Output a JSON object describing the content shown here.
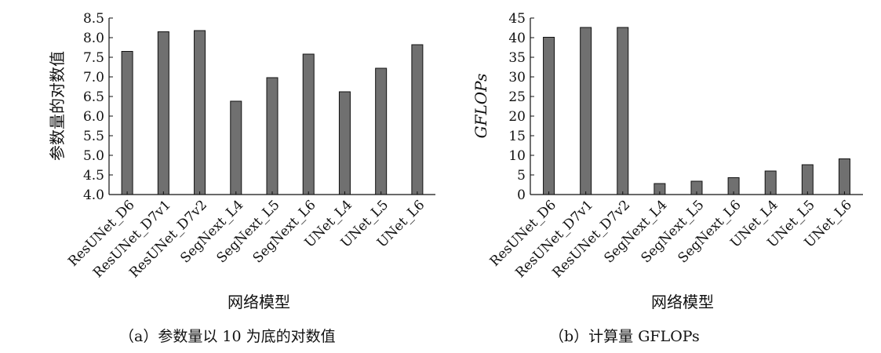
{
  "chart_data": [
    {
      "type": "bar",
      "xlabel": "网络模型",
      "ylabel": "参数量的对数值",
      "ylabel_italic": false,
      "categories": [
        "ResUNet_D6",
        "ResUNet_D7v1",
        "ResUNet_D7v2",
        "SegNext_L4",
        "SegNext_L5",
        "SegNext_L6",
        "UNet_L4",
        "UNet_L5",
        "UNet_L6"
      ],
      "values": [
        7.65,
        8.15,
        8.18,
        6.38,
        6.98,
        7.58,
        6.62,
        7.22,
        7.82
      ],
      "ylim": [
        4.0,
        8.5
      ],
      "yticks": [
        4.0,
        4.5,
        5.0,
        5.5,
        6.0,
        6.5,
        7.0,
        7.5,
        8.0,
        8.5
      ],
      "ytick_labels": [
        "4.0",
        "4.5",
        "5.0",
        "5.5",
        "6.0",
        "6.5",
        "7.0",
        "7.5",
        "8.0",
        "8.5"
      ],
      "bar_color": "#707070",
      "grid": false,
      "caption_label": "（a）",
      "caption_text": "参数量以 10 为底的对数值"
    },
    {
      "type": "bar",
      "xlabel": "网络模型",
      "ylabel": "GFLOPs",
      "ylabel_italic": true,
      "categories": [
        "ResUNet_D6",
        "ResUNet_D7v1",
        "ResUNet_D7v2",
        "SegNext_L4",
        "SegNext_L5",
        "SegNext_L6",
        "UNet_L4",
        "UNet_L5",
        "UNet_L6"
      ],
      "values": [
        40.1,
        42.6,
        42.6,
        2.8,
        3.4,
        4.3,
        6.0,
        7.6,
        9.1
      ],
      "ylim": [
        0,
        45
      ],
      "yticks": [
        0,
        5,
        10,
        15,
        20,
        25,
        30,
        35,
        40,
        45
      ],
      "ytick_labels": [
        "0",
        "5",
        "10",
        "15",
        "20",
        "25",
        "30",
        "35",
        "40",
        "45"
      ],
      "bar_color": "#707070",
      "grid": false,
      "caption_label": "（b）",
      "caption_text": "计算量 GFLOPs"
    }
  ]
}
